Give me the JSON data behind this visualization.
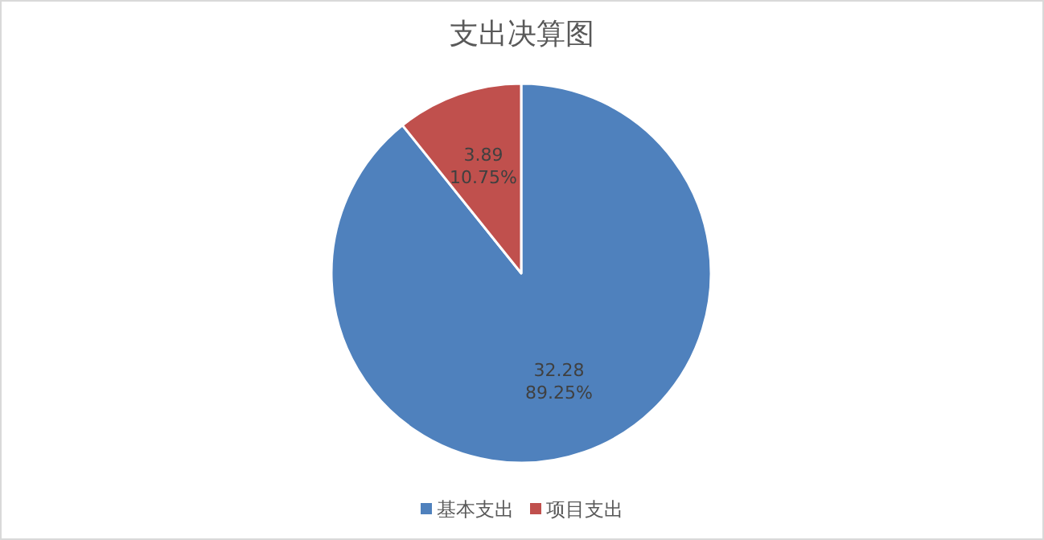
{
  "chart_data": {
    "type": "pie",
    "title": "支出决算图",
    "categories": [
      "基本支出",
      "项目支出"
    ],
    "values": [
      32.28,
      3.89
    ],
    "colors": [
      "#4f81bd",
      "#c0504d"
    ],
    "value_labels": [
      "32.28\n89.25%",
      "3.89\n10.75%"
    ],
    "legend": "bottom"
  }
}
